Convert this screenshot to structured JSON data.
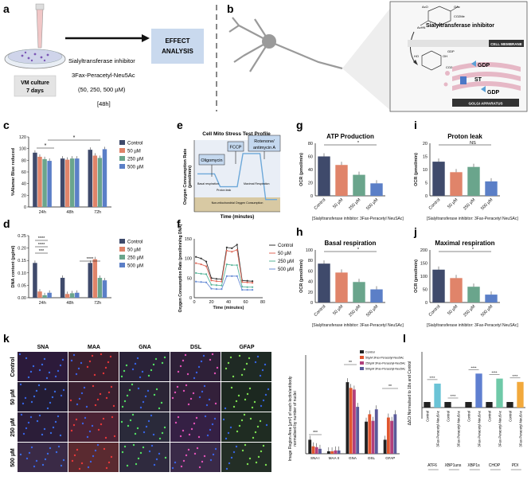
{
  "panel_letters": {
    "a": "a",
    "b": "b",
    "c": "c",
    "d": "d",
    "e": "e",
    "f": "f",
    "g": "g",
    "h": "h",
    "i": "i",
    "j": "j",
    "k": "k",
    "l": "l"
  },
  "panel_a": {
    "culture_label": "VM culture",
    "culture_days": "7 days",
    "treatment": "Sialyltransferase inhibitor",
    "compound": "3Fax-Peracetyl-Neu5Ac",
    "doses": "(50, 250, 500 µM)",
    "duration": "[48h]",
    "box_line1": "EFFECT",
    "box_line2": "ANALYSIS"
  },
  "panel_b": {
    "inhibitor_label": "Sialyltransferase inhibitor",
    "membrane_label": "CELL MEMBRANE",
    "golgi_label": "GOLGI APPARATUS",
    "gdp1": "GDP",
    "gdp2": "GDP",
    "st": "ST",
    "chem_labels": [
      "AcO",
      "OAc",
      "CO2Me",
      "AcHN",
      "HO",
      "OH",
      "GDP",
      "CO2"
    ]
  },
  "colors": {
    "control": "#3f4a6b",
    "c50": "#e0846a",
    "c250": "#6aa58c",
    "c500": "#5b7fc7"
  },
  "legend_conc": [
    "Control",
    "50 µM",
    "250 µM",
    "500 µM"
  ],
  "shared": {
    "conc_ticks": [
      "Control",
      "50 µM",
      "250 µM",
      "500 µM"
    ],
    "ocr_ylabel": "OCR (pmol/min)",
    "xcaption": "[Sialyltransferase inhibitor: 3Fax-Peracetyl NeuSAc]"
  },
  "panel_e": {
    "title": "Cell Mito Stress Test Profile",
    "ylabel_1": "Oxygen Consumption Rate",
    "ylabel_2": "(pmol/min)",
    "xlabel": "Time (minutes)",
    "injections": [
      "Oligomycin",
      "FCCP",
      "Rotenone/\nantimycin A"
    ],
    "rot_line1": "Rotenone/",
    "rot_line2": "antimycin A",
    "regions": [
      "Basal respiration",
      "Proton leak",
      "Maximal Respiration",
      "Spare respiratory capacity",
      "Non-mitochondrial Oxygen Consumption"
    ]
  },
  "panel_k": {
    "columns": [
      "SNA",
      "MAA",
      "GNA",
      "DSL",
      "GFAP"
    ],
    "rows": [
      "Control",
      "50 µM",
      "250 µM",
      "500 µM"
    ],
    "legend": [
      "Control",
      "50µM 3Fax-Peracetyl-Neu5Ac",
      "250µM 3Fax-Peracetyl-Neu5Ac",
      "500µM 3Fax-Peracetyl-Neu5Ac"
    ],
    "ylabel_1": "Image Region Area [µm²] of each lectin/antibody",
    "ylabel_2": "normalised by number of nuclei"
  },
  "panel_l": {
    "ylabel": "ΔΔCt Normalised to 18s and Control"
  },
  "chart_data": [
    {
      "id": "c",
      "type": "bar",
      "ylabel": "%Alamar Blue reduced",
      "categories": [
        "24h",
        "48h",
        "72h"
      ],
      "ylim": [
        0,
        120
      ],
      "yticks": [
        0,
        20,
        40,
        60,
        80,
        100,
        120
      ],
      "series": [
        {
          "name": "Control",
          "values": [
            93,
            83,
            98
          ]
        },
        {
          "name": "50 µM",
          "values": [
            86,
            81,
            88
          ]
        },
        {
          "name": "250 µM",
          "values": [
            82,
            83,
            84
          ]
        },
        {
          "name": "500 µM",
          "values": [
            79,
            83,
            99
          ]
        }
      ],
      "annotations": [
        "*",
        "*"
      ]
    },
    {
      "id": "d",
      "type": "bar",
      "ylabel": "DNA content (pg/ml)",
      "categories": [
        "24h",
        "48h",
        "72h"
      ],
      "ylim": [
        0,
        0.25
      ],
      "yticks": [
        0.0,
        0.05,
        0.1,
        0.15,
        0.2,
        0.25
      ],
      "ytick_labels": [
        "0.00",
        "0.05",
        "0.10",
        "0.15",
        "0.20",
        "0.25"
      ],
      "series": [
        {
          "name": "Control",
          "values": [
            0.14,
            0.08,
            0.14
          ]
        },
        {
          "name": "50 µM",
          "values": [
            0.025,
            0.015,
            0.155
          ]
        },
        {
          "name": "250 µM",
          "values": [
            0.01,
            0.018,
            0.08
          ]
        },
        {
          "name": "500 µM",
          "values": [
            0.02,
            0.02,
            0.07
          ]
        }
      ],
      "annotations": [
        "****",
        "****",
        "***",
        "****"
      ]
    },
    {
      "id": "e",
      "type": "line",
      "xlabel": "Time (minutes)",
      "x": [
        0,
        5,
        10,
        15,
        20,
        25,
        30,
        35,
        40,
        45,
        50,
        55,
        60,
        65,
        70
      ],
      "y": [
        56,
        56,
        56,
        56,
        37,
        37,
        37,
        37,
        86,
        86,
        86,
        86,
        18,
        18,
        18
      ]
    },
    {
      "id": "f",
      "type": "line",
      "ylabel": "Oxygen Consumption Rate (pmol/min/ng DNA)",
      "xlabel": "Time (minutes)",
      "xlim": [
        0,
        80
      ],
      "ylim": [
        0,
        150
      ],
      "xticks": [
        0,
        20,
        40,
        60,
        80
      ],
      "yticks": [
        0,
        50,
        100,
        150
      ],
      "x": [
        2,
        8,
        14,
        20,
        26,
        32,
        38,
        44,
        50,
        56,
        62,
        68
      ],
      "series": [
        {
          "name": "Control",
          "values": [
            104,
            100,
            92,
            50,
            48,
            47,
            128,
            126,
            135,
            44,
            43,
            42
          ]
        },
        {
          "name": "50 µM",
          "values": [
            88,
            85,
            80,
            44,
            42,
            41,
            120,
            117,
            122,
            40,
            39,
            38
          ]
        },
        {
          "name": "250 µM",
          "values": [
            63,
            61,
            60,
            33,
            32,
            31,
            85,
            83,
            83,
            28,
            27,
            27
          ]
        },
        {
          "name": "500 µM",
          "values": [
            41,
            40,
            39,
            23,
            22,
            22,
            55,
            55,
            55,
            20,
            20,
            20
          ]
        }
      ]
    },
    {
      "id": "g",
      "type": "bar",
      "title": "ATP Production",
      "ylabel": "OCR (pmol/min)",
      "categories": [
        "Control",
        "50 µM",
        "250 µM",
        "500 µM"
      ],
      "ylim": [
        0,
        80
      ],
      "yticks": [
        0,
        20,
        40,
        60,
        80
      ],
      "values": [
        60,
        47,
        32,
        19
      ],
      "annotations": [
        "*"
      ]
    },
    {
      "id": "h",
      "type": "bar",
      "title": "Basal respiration",
      "ylabel": "OCR (pmol/min)",
      "categories": [
        "Control",
        "50 µM",
        "250 µM",
        "500 µM"
      ],
      "ylim": [
        0,
        100
      ],
      "yticks": [
        0,
        20,
        40,
        60,
        80,
        100
      ],
      "values": [
        74,
        57,
        39,
        25
      ],
      "annotations": [
        "*"
      ]
    },
    {
      "id": "i",
      "type": "bar",
      "title": "Proton leak",
      "ylabel": "OCR (pmol/min)",
      "categories": [
        "Control",
        "50 µM",
        "250 µM",
        "500 µM"
      ],
      "ylim": [
        0,
        20
      ],
      "yticks": [
        0,
        5,
        10,
        15,
        20
      ],
      "values": [
        13,
        9,
        11,
        5.5
      ],
      "annotations": [
        "NS"
      ]
    },
    {
      "id": "j",
      "type": "bar",
      "title": "Maximal respiration",
      "ylabel": "OCR (pmol/min)",
      "categories": [
        "Control",
        "50 µM",
        "250 µM",
        "500 µM"
      ],
      "ylim": [
        0,
        200
      ],
      "yticks": [
        0,
        50,
        100,
        150,
        200
      ],
      "values": [
        125,
        93,
        60,
        30
      ],
      "annotations": [
        "*"
      ]
    },
    {
      "id": "k",
      "type": "bar",
      "categories": [
        "SNA I",
        "MAA II",
        "GNA",
        "DSL",
        "GFAP"
      ],
      "ylim": [
        0,
        0.12
      ],
      "series": [
        {
          "name": "Control",
          "values": [
            0.017,
            0.003,
            0.087,
            0.039,
            0.017
          ]
        },
        {
          "name": "50µM 3Fax-Peracetyl-Neu5Ac",
          "values": [
            0.009,
            0.003,
            0.08,
            0.048,
            0.044
          ]
        },
        {
          "name": "250µM 3Fax-Peracetyl-Neu5Ac",
          "values": [
            0.008,
            0.004,
            0.078,
            0.04,
            0.04
          ]
        },
        {
          "name": "500µM 3Fax-Peracetyl-Neu5Ac",
          "values": [
            0.006,
            0.004,
            0.057,
            0.054,
            0.048
          ]
        }
      ],
      "annotations": [
        "***",
        "**",
        "**"
      ]
    },
    {
      "id": "l",
      "type": "bar",
      "ylabel": "ΔΔCt Normalised to 18s and Control",
      "ylim": [
        -2,
        10
      ],
      "groups": [
        "ATF6",
        "XBP1uns",
        "XBP1s",
        "CHOP",
        "PDI"
      ],
      "categories": [
        "Control",
        "3Fax-Peracetyl-Neu5Ac",
        "Control",
        "3Fax-Peracetyl-Neu5Ac",
        "Control",
        "3Fax-Peracetyl-Neu5Ac",
        "Control",
        "3Fax-Peracetyl-Neu5Ac",
        "Control",
        "3Fax-Peracetyl-Neu5Ac"
      ],
      "values": [
        1,
        4.3,
        1,
        -0.1,
        1,
        6.1,
        1,
        5.2,
        1,
        4.6
      ],
      "bar_colors": [
        "#222222",
        "#6bc3d6",
        "#222222",
        "#6f6f6f",
        "#222222",
        "#5f7fd0",
        "#222222",
        "#6fc9a8",
        "#222222",
        "#f2a93c"
      ],
      "annotations": [
        "****",
        "****",
        "****",
        "****",
        "****"
      ]
    }
  ]
}
